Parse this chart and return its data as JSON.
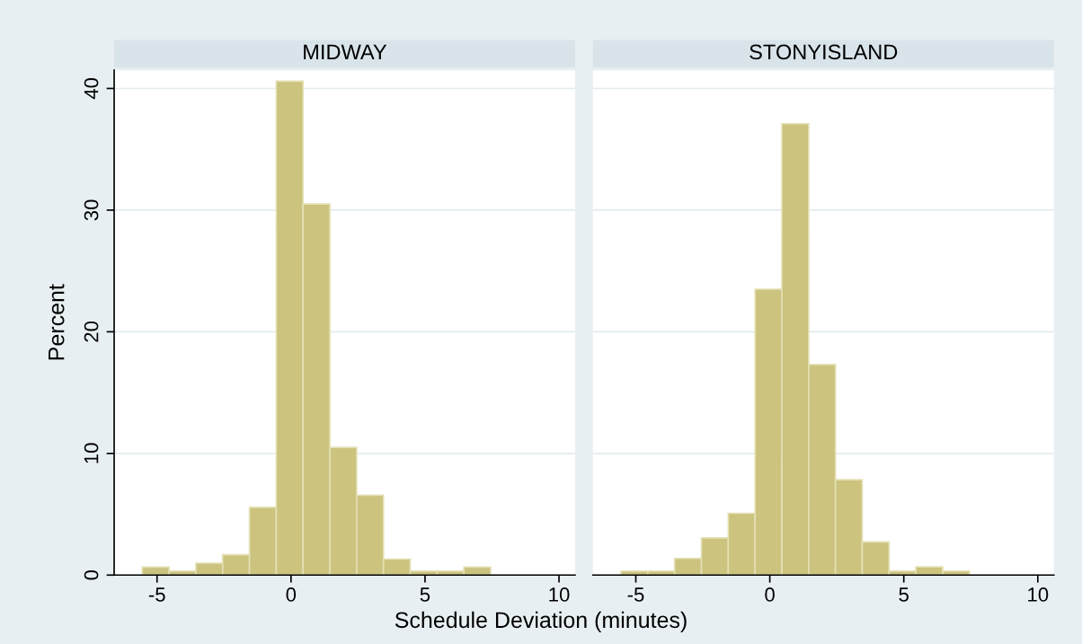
{
  "chart_data": [
    {
      "type": "histogram",
      "title": "MIDWAY",
      "xlabel": "Schedule Deviation (minutes)",
      "ylabel": "Percent",
      "bins": [
        -5.55,
        -4.55,
        -3.55,
        -2.55,
        -1.55,
        -0.55,
        0.45,
        1.45,
        2.45,
        3.45,
        4.45,
        5.45,
        6.45,
        7.45
      ],
      "values": [
        0.66,
        0.33,
        0.98,
        1.67,
        5.57,
        40.6,
        30.5,
        10.5,
        6.56,
        1.31,
        0.33,
        0.33,
        0.66
      ],
      "color": "#cbc37e",
      "xlim": [
        -6.6,
        10.6
      ],
      "xticks": [
        {
          "value": -5,
          "label": "-5"
        },
        0,
        5,
        10
      ],
      "ylim": [
        0,
        41.5
      ],
      "yticks": [
        0,
        10,
        20,
        30,
        40
      ],
      "grid": "y"
    },
    {
      "type": "histogram",
      "title": "STONYISLAND",
      "bins": [
        -5.55,
        -4.55,
        -3.55,
        -2.55,
        -1.55,
        -0.55,
        0.45,
        1.45,
        2.45,
        3.45,
        4.45,
        5.45,
        6.45,
        7.45
      ],
      "values": [
        0.33,
        0.33,
        1.37,
        3.06,
        5.08,
        23.5,
        37.1,
        17.3,
        7.84,
        2.73,
        0.33,
        0.68,
        0.33
      ],
      "color": "#cbc37e",
      "xlim": [
        -6.6,
        10.6
      ],
      "xticks": [
        {
          "value": -5,
          "label": "-5"
        },
        0,
        5,
        10
      ],
      "ylim": [
        0,
        41.5
      ],
      "yticks": [
        0,
        10,
        20,
        30,
        40
      ],
      "grid": "y",
      "tick_labels": "x"
    }
  ]
}
